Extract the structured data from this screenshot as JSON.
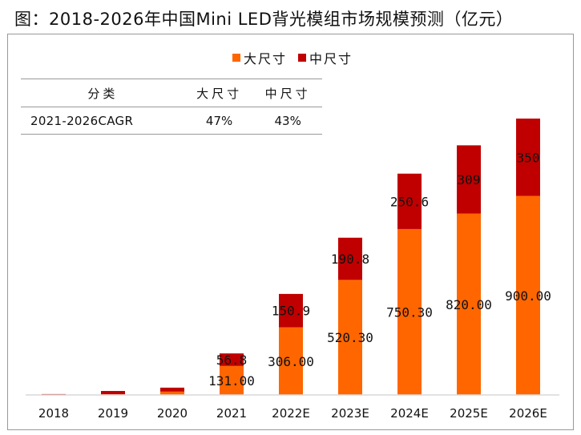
{
  "title": "图：2018-2026年中国Mini LED背光模组市场规模预测（亿元）",
  "colors": {
    "large": "#FF6600",
    "medium": "#C00000",
    "axis": "#D9D9D9"
  },
  "cagr_table": {
    "headers": [
      "分类",
      "大尺寸",
      "中尺寸"
    ],
    "rows": [
      [
        "2021-2026CAGR",
        "47%",
        "43%"
      ]
    ]
  },
  "chart_data": {
    "type": "bar",
    "stacked": true,
    "title": "2018-2026年中国Mini LED背光模组市场规模预测（亿元）",
    "xlabel": "",
    "ylabel": "",
    "categories": [
      "2018",
      "2019",
      "2020",
      "2021",
      "2022E",
      "2023E",
      "2024E",
      "2025E",
      "2026E"
    ],
    "series": [
      {
        "name": "大尺寸",
        "color": "#FF6600",
        "values": [
          1,
          3,
          15,
          131.0,
          306.0,
          520.3,
          750.3,
          820.0,
          900.0
        ],
        "labels": [
          "",
          "",
          "",
          "131.00",
          "306.00",
          "520.30",
          "750.30",
          "820.00",
          "900.00"
        ]
      },
      {
        "name": "中尺寸",
        "color": "#C00000",
        "values": [
          3,
          15,
          18,
          56.8,
          150.9,
          190.8,
          250.6,
          309,
          350
        ],
        "labels": [
          "",
          "",
          "",
          "56.8",
          "150.9",
          "190.8",
          "250.6",
          "309",
          "350"
        ]
      }
    ],
    "ylim": [
      0,
      1250
    ],
    "grid": false,
    "yaxis_visible": false,
    "legend": {
      "position": "top-center",
      "entries": [
        "大尺寸",
        "中尺寸"
      ]
    }
  }
}
